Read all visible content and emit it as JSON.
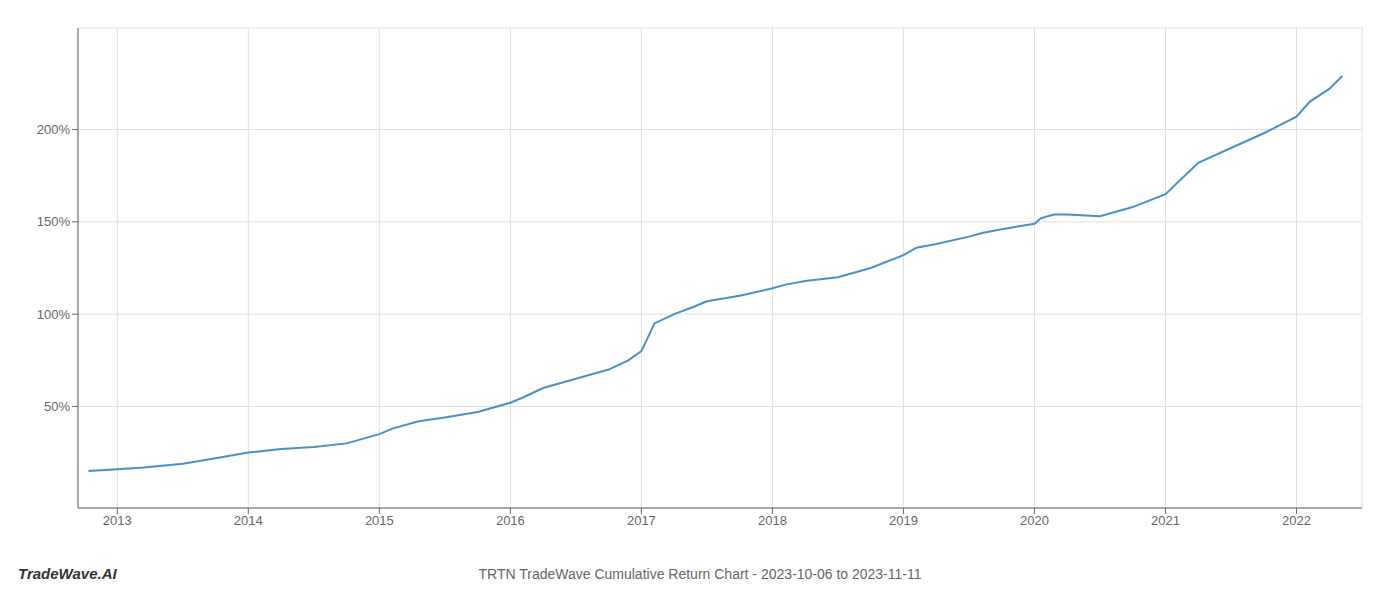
{
  "chart_data": {
    "type": "line",
    "title": "TRTN TradeWave Cumulative Return Chart - 2023-10-06 to 2023-11-11",
    "annotations": [
      "TradeWave.AI"
    ],
    "x": [
      2012.78,
      2013.0,
      2013.2,
      2013.5,
      2013.75,
      2014.0,
      2014.25,
      2014.5,
      2014.75,
      2015.0,
      2015.1,
      2015.3,
      2015.5,
      2015.75,
      2016.0,
      2016.1,
      2016.25,
      2016.5,
      2016.75,
      2016.9,
      2017.0,
      2017.1,
      2017.25,
      2017.4,
      2017.5,
      2017.75,
      2018.0,
      2018.1,
      2018.25,
      2018.5,
      2018.75,
      2019.0,
      2019.1,
      2019.25,
      2019.5,
      2019.6,
      2019.75,
      2020.0,
      2020.05,
      2020.15,
      2020.25,
      2020.5,
      2020.75,
      2021.0,
      2021.25,
      2021.5,
      2021.75,
      2022.0,
      2022.1,
      2022.25,
      2022.35
    ],
    "values": [
      15,
      16,
      17,
      19,
      22,
      25,
      27,
      28,
      30,
      35,
      38,
      42,
      44,
      47,
      52,
      55,
      60,
      65,
      70,
      75,
      80,
      95,
      100,
      104,
      107,
      110,
      114,
      116,
      118,
      120,
      125,
      132,
      136,
      138,
      142,
      144,
      146,
      149,
      152,
      154,
      154,
      153,
      158,
      165,
      182,
      190,
      198,
      207,
      215,
      222,
      229
    ],
    "color": "#4a90c4",
    "xlim": [
      2012.7,
      2022.5
    ],
    "xticks": [
      2013,
      2014,
      2015,
      2016,
      2017,
      2018,
      2019,
      2020,
      2021,
      2022
    ],
    "ylim": [
      -5,
      255
    ],
    "yticks": [
      {
        "value": 50,
        "label": "50%"
      },
      {
        "value": 100,
        "label": "100%"
      },
      {
        "value": 150,
        "label": "150%"
      },
      {
        "value": 200,
        "label": "200%"
      }
    ],
    "grid": true
  }
}
